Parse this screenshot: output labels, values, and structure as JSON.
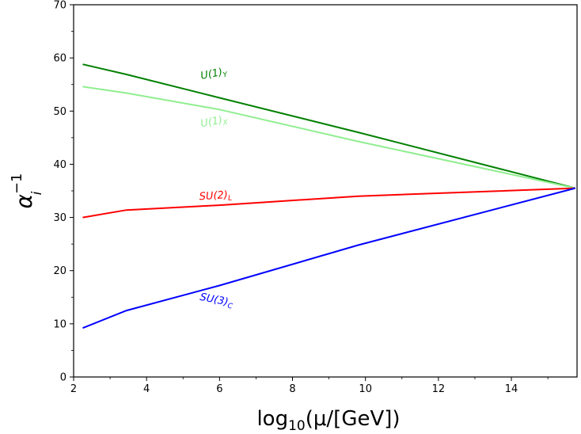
{
  "chart_data": {
    "type": "line",
    "xlabel": {
      "base": "log",
      "sub": "10",
      "rest": "(μ/[GeV])"
    },
    "ylabel": {
      "base": "α",
      "sup": "−1",
      "sub": "i"
    },
    "xlim": [
      2,
      15.8
    ],
    "ylim": [
      0,
      70
    ],
    "xticks": [
      "2",
      "4",
      "6",
      "8",
      "10",
      "12",
      "14"
    ],
    "yticks": [
      "0",
      "10",
      "20",
      "30",
      "40",
      "50",
      "60",
      "70"
    ],
    "grid": false,
    "series": [
      {
        "name": "U(1)Y",
        "label_base": "U(1)",
        "label_sub": "Y",
        "color": "#008000",
        "x": [
          2.25,
          3.45,
          6.0,
          9.8,
          15.75
        ],
        "y": [
          58.8,
          56.9,
          52.5,
          46.0,
          35.5
        ],
        "label_at": [
          5.5,
          56.0
        ],
        "label_angle": 11
      },
      {
        "name": "U(1)X",
        "label_base": "U(1)",
        "label_sub": "X",
        "color": "#90ee90",
        "x": [
          2.25,
          3.45,
          6.0,
          9.8,
          15.75
        ],
        "y": [
          54.6,
          53.4,
          50.3,
          44.3,
          35.5
        ],
        "label_at": [
          5.5,
          47.0
        ],
        "label_angle": 11
      },
      {
        "name": "SU(2)L",
        "label_base": "SU(2)",
        "label_sub": "L",
        "color": "#ff0000",
        "x": [
          2.25,
          3.45,
          6.0,
          9.8,
          15.75
        ],
        "y": [
          30.0,
          31.4,
          32.3,
          34.0,
          35.5
        ],
        "label_at": [
          5.45,
          33.3
        ],
        "label_angle": 4
      },
      {
        "name": "SU(3)C",
        "label_base": "SU(3)",
        "label_sub": "C",
        "color": "#0000ff",
        "x": [
          2.25,
          3.45,
          6.0,
          9.8,
          15.75
        ],
        "y": [
          9.2,
          12.5,
          17.2,
          24.8,
          35.5
        ],
        "label_at": [
          5.45,
          14.5
        ],
        "label_angle": -11
      }
    ]
  }
}
